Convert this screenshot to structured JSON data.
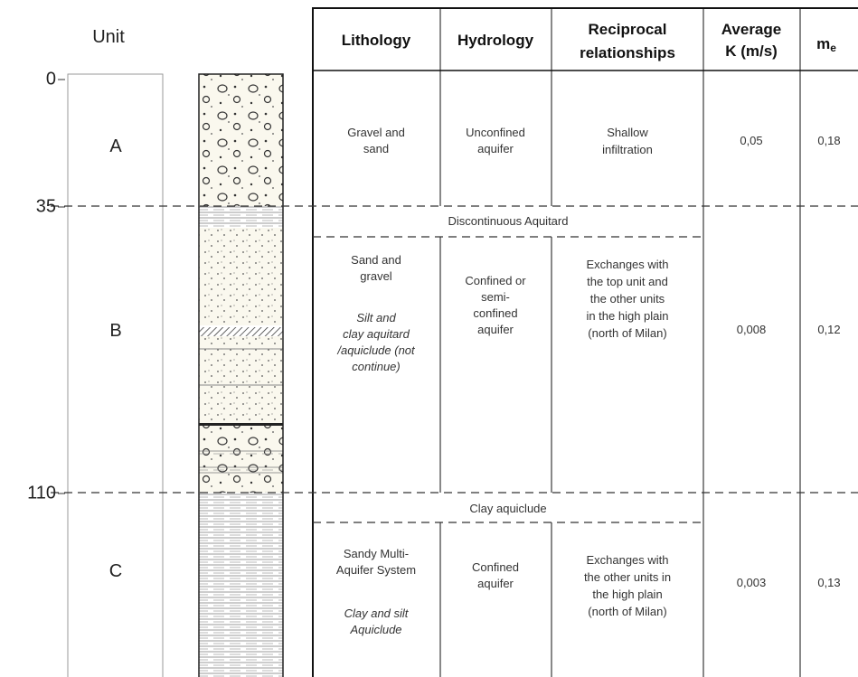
{
  "units": {
    "header": "Unit",
    "depths": [
      0,
      35,
      110
    ],
    "labels": [
      "A",
      "B",
      "C"
    ]
  },
  "table": {
    "headers": [
      [
        "Lithology"
      ],
      [
        "Hydrology"
      ],
      [
        "Reciprocal",
        "relationships"
      ],
      [
        "Average",
        "K (m/s)"
      ]
    ],
    "me_header": {
      "main": "m",
      "sub": "e"
    },
    "rows": [
      {
        "lithology": [
          "Gravel and",
          "sand"
        ],
        "lithology_italic": [],
        "hydrology": [
          "Unconfined",
          "aquifer"
        ],
        "relationships": [
          "Shallow",
          "infiltration"
        ],
        "k": "0,05",
        "me": "0,18"
      },
      {
        "lithology": [
          "Sand and",
          "gravel"
        ],
        "lithology_italic": [
          "Silt and",
          "clay aquitard",
          "/aquiclude (not",
          "continue)"
        ],
        "hydrology": [
          "Confined or",
          "semi-",
          "confined",
          "aquifer"
        ],
        "relationships": [
          "Exchanges with",
          "the top unit and",
          "the other units",
          "in the high plain",
          "(north of Milan)"
        ],
        "k": "0,008",
        "me": "0,12"
      },
      {
        "lithology": [
          "Sandy Multi-",
          "Aquifer System"
        ],
        "lithology_italic": [
          "Clay and silt",
          "Aquiclude"
        ],
        "hydrology": [
          "Confined",
          "aquifer"
        ],
        "relationships": [
          "Exchanges with",
          "the other units in",
          "the high plain",
          "(north of Milan)"
        ],
        "k": "0,003",
        "me": "0,13"
      }
    ],
    "separators": [
      "Discontinuous Aquitard",
      "Clay aquiclude"
    ]
  }
}
